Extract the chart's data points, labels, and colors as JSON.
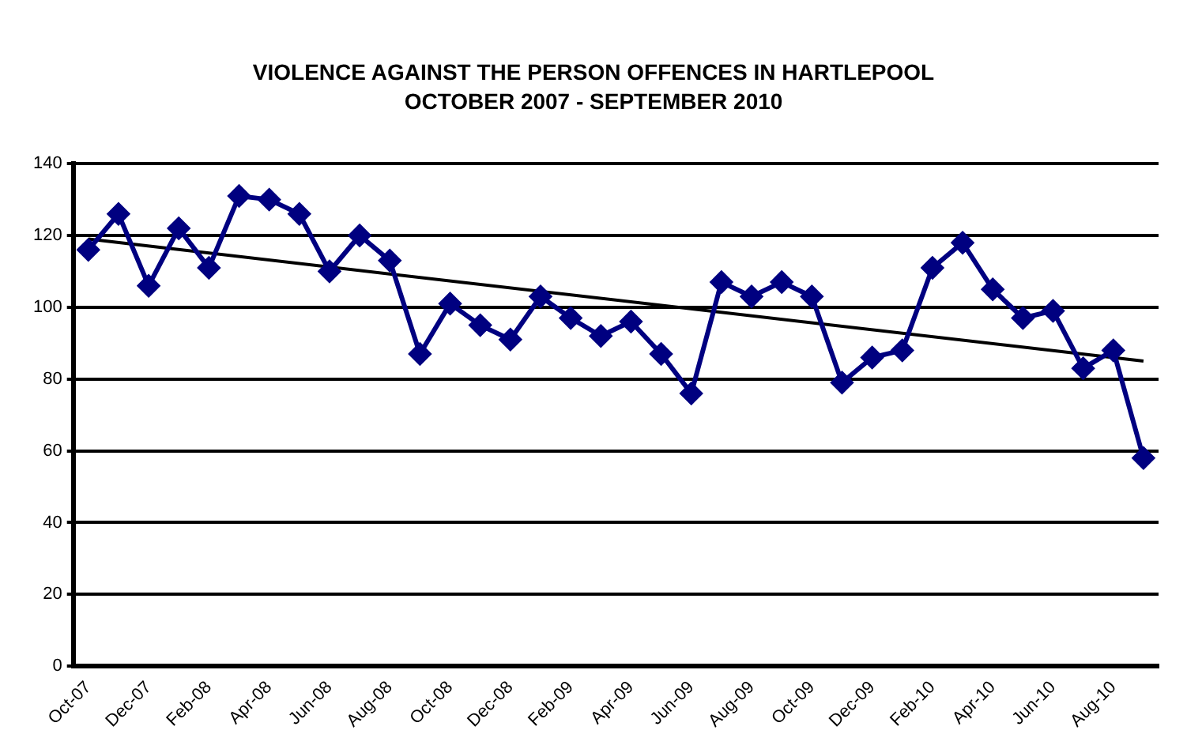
{
  "chart_data": {
    "type": "line",
    "title": "VIOLENCE AGAINST THE PERSON OFFENCES IN HARTLEPOOL",
    "subtitle": "OCTOBER 2007 - SEPTEMBER 2010",
    "categories": [
      "Oct-07",
      null,
      "Dec-07",
      null,
      "Feb-08",
      null,
      "Apr-08",
      null,
      "Jun-08",
      null,
      "Aug-08",
      null,
      "Oct-08",
      null,
      "Dec-08",
      null,
      "Feb-09",
      null,
      "Apr-09",
      null,
      "Jun-09",
      null,
      "Aug-09",
      null,
      "Oct-09",
      null,
      "Dec-09",
      null,
      "Feb-10",
      null,
      "Apr-10",
      null,
      "Jun-10",
      null,
      "Aug-10",
      null
    ],
    "series": [
      {
        "color": "#000080",
        "marker": "diamond",
        "values": [
          116,
          126,
          106,
          122,
          111,
          131,
          130,
          126,
          110,
          120,
          113,
          87,
          101,
          95,
          91,
          103,
          97,
          92,
          96,
          87,
          76,
          107,
          103,
          107,
          103,
          79,
          86,
          88,
          111,
          118,
          105,
          97,
          99,
          83,
          88,
          58
        ]
      },
      {
        "type": "line",
        "color": "#000000",
        "marker": "none",
        "values": [
          119,
          null,
          null,
          null,
          null,
          null,
          null,
          null,
          null,
          null,
          null,
          null,
          null,
          null,
          null,
          null,
          null,
          null,
          null,
          null,
          null,
          null,
          null,
          null,
          null,
          null,
          null,
          null,
          null,
          null,
          null,
          null,
          null,
          null,
          null,
          85
        ]
      }
    ],
    "ylim": [
      0,
      140
    ],
    "yticks": [
      0,
      20,
      40,
      60,
      80,
      100,
      120,
      140
    ],
    "grid": "y",
    "legend": false
  }
}
